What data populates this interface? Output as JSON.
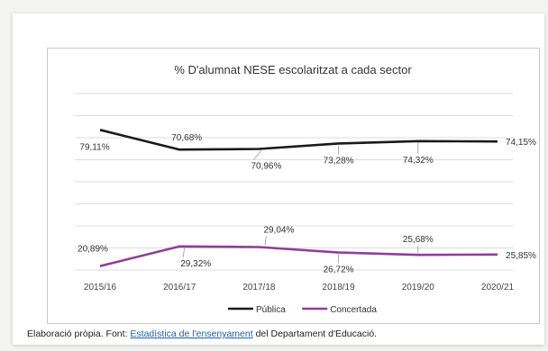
{
  "chart_data": {
    "type": "line",
    "title": "% D'alumnat NESE escolaritzat a cada sector",
    "categories": [
      "2015/16",
      "2016/17",
      "2017/18",
      "2018/19",
      "2019/20",
      "2020/21"
    ],
    "series": [
      {
        "name": "Pública",
        "color": "#1a1a1a",
        "values": [
          79.11,
          70.68,
          70.96,
          73.28,
          74.32,
          74.15
        ],
        "labels": [
          "79,11%",
          "70,68%",
          "70,96%",
          "73,28%",
          "74,32%",
          "74,15%"
        ]
      },
      {
        "name": "Concertada",
        "color": "#8e3f98",
        "values": [
          20.89,
          29.32,
          29.04,
          26.72,
          25.68,
          25.85
        ],
        "labels": [
          "20,89%",
          "29,32%",
          "29,04%",
          "26,72%",
          "25,68%",
          "25,85%"
        ]
      }
    ],
    "grid": true,
    "legend_position": "bottom"
  },
  "caption": {
    "prefix": "Elaboració pròpia. Font: ",
    "link": "Estadística de l'ensenyament",
    "suffix": " del Departament d'Educació."
  }
}
